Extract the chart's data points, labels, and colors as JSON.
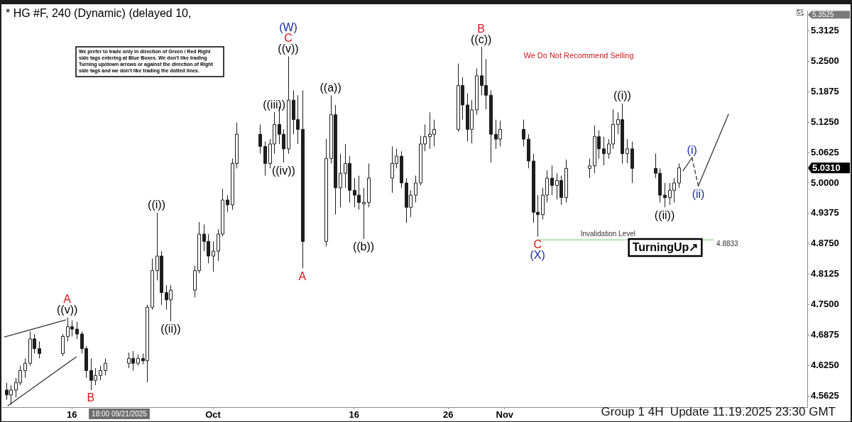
{
  "chart_data": {
    "type": "candlestick",
    "title": "* HG #F, 240 (Dynamic) (delayed 10,",
    "color": "#1e1e1e",
    "x": [
      "2025-09-09T00:00",
      "2025-09-09T12:00",
      "2025-09-10T00:00",
      "2025-09-10T12:00",
      "2025-09-11T00:00",
      "2025-09-11T12:00",
      "2025-09-12T00:00",
      "2025-09-12T12:00",
      "2025-09-15T00:00",
      "2025-09-15T12:00",
      "2025-09-16T00:00",
      "2025-09-16T12:00",
      "2025-09-17T00:00",
      "2025-09-17T12:00",
      "2025-09-18T00:00",
      "2025-09-18T12:00",
      "2025-09-19T00:00",
      "2025-09-19T12:00",
      "2025-09-22T00:00",
      "2025-09-22T12:00",
      "2025-09-23T00:00",
      "2025-09-23T12:00",
      "2025-09-24T00:00",
      "2025-09-24T12:00",
      "2025-09-25T00:00",
      "2025-09-25T12:00",
      "2025-09-26T00:00",
      "2025-09-26T12:00",
      "2025-09-29T00:00",
      "2025-09-29T12:00",
      "2025-09-30T00:00",
      "2025-09-30T12:00",
      "2025-10-01T00:00",
      "2025-10-01T12:00",
      "2025-10-02T00:00",
      "2025-10-02T12:00",
      "2025-10-03T00:00",
      "2025-10-03T12:00",
      "2025-10-06T00:00",
      "2025-10-06T12:00",
      "2025-10-07T00:00",
      "2025-10-07T12:00",
      "2025-10-08T00:00",
      "2025-10-08T12:00",
      "2025-10-09T00:00",
      "2025-10-09T12:00",
      "2025-10-10T00:00",
      "2025-10-10T12:00",
      "2025-10-13T00:00",
      "2025-10-13T12:00",
      "2025-10-14T00:00",
      "2025-10-14T12:00",
      "2025-10-15T00:00",
      "2025-10-15T12:00",
      "2025-10-16T00:00",
      "2025-10-16T12:00",
      "2025-10-17T00:00",
      "2025-10-17T12:00",
      "2025-10-20T00:00",
      "2025-10-20T12:00",
      "2025-10-21T00:00",
      "2025-10-21T12:00",
      "2025-10-22T00:00",
      "2025-10-22T12:00",
      "2025-10-23T00:00",
      "2025-10-23T12:00",
      "2025-10-24T00:00",
      "2025-10-24T12:00",
      "2025-10-27T00:00",
      "2025-10-27T12:00",
      "2025-10-28T00:00",
      "2025-10-28T12:00",
      "2025-10-29T00:00",
      "2025-10-29T12:00",
      "2025-10-30T00:00",
      "2025-10-30T12:00",
      "2025-10-31T00:00",
      "2025-10-31T12:00",
      "2025-11-03T00:00",
      "2025-11-03T12:00",
      "2025-11-04T00:00",
      "2025-11-04T12:00",
      "2025-11-05T00:00",
      "2025-11-05T12:00",
      "2025-11-06T00:00",
      "2025-11-06T12:00",
      "2025-11-07T00:00",
      "2025-11-07T12:00",
      "2025-11-10T00:00",
      "2025-11-10T12:00",
      "2025-11-11T00:00",
      "2025-11-11T12:00",
      "2025-11-12T00:00",
      "2025-11-12T12:00",
      "2025-11-13T00:00",
      "2025-11-13T12:00",
      "2025-11-14T00:00",
      "2025-11-14T12:00",
      "2025-11-17T00:00",
      "2025-11-17T12:00",
      "2025-11-18T00:00",
      "2025-11-18T12:00",
      "2025-11-19T00:00",
      "2025-11-19T12:00"
    ],
    "ohlc": [
      [
        4.575,
        4.59,
        4.555,
        4.565
      ],
      [
        4.565,
        4.585,
        4.545,
        4.575
      ],
      [
        4.575,
        4.6,
        4.56,
        4.59
      ],
      [
        4.59,
        4.625,
        4.585,
        4.615
      ],
      [
        4.615,
        4.64,
        4.6,
        4.63
      ],
      [
        4.63,
        4.695,
        4.625,
        4.68
      ],
      [
        4.68,
        4.69,
        4.65,
        4.66
      ],
      [
        4.66,
        4.675,
        4.64,
        4.65
      ],
      [
        4.65,
        4.69,
        4.645,
        4.685
      ],
      [
        4.685,
        4.724,
        4.675,
        4.705
      ],
      [
        4.705,
        4.718,
        4.685,
        4.7
      ],
      [
        4.7,
        4.715,
        4.68,
        4.69
      ],
      [
        4.69,
        4.695,
        4.65,
        4.66
      ],
      [
        4.66,
        4.665,
        4.6,
        4.615
      ],
      [
        4.615,
        4.64,
        4.575,
        4.595
      ],
      [
        4.595,
        4.62,
        4.585,
        4.605
      ],
      [
        4.605,
        4.625,
        4.595,
        4.615
      ],
      [
        4.615,
        4.64,
        4.605,
        4.63
      ],
      [
        4.63,
        4.652,
        4.62,
        4.64
      ],
      [
        4.64,
        4.655,
        4.615,
        4.63
      ],
      [
        4.63,
        4.648,
        4.625,
        4.64
      ],
      [
        4.64,
        4.65,
        4.628,
        4.635
      ],
      [
        4.635,
        4.75,
        4.591,
        4.745
      ],
      [
        4.745,
        4.845,
        4.74,
        4.82
      ],
      [
        4.82,
        4.939,
        4.8,
        4.85
      ],
      [
        4.85,
        4.86,
        4.75,
        4.775
      ],
      [
        4.775,
        4.79,
        4.74,
        4.76
      ],
      [
        4.76,
        4.79,
        4.716,
        4.78
      ],
      [
        4.78,
        4.83,
        4.765,
        4.82
      ],
      [
        4.82,
        4.92,
        4.815,
        4.895
      ],
      [
        4.895,
        4.915,
        4.86,
        4.88
      ],
      [
        4.88,
        4.895,
        4.835,
        4.85
      ],
      [
        4.85,
        4.88,
        4.818,
        4.86
      ],
      [
        4.86,
        4.905,
        4.84,
        4.895
      ],
      [
        4.895,
        4.988,
        4.89,
        4.965
      ],
      [
        4.965,
        4.975,
        4.94,
        4.955
      ],
      [
        4.955,
        5.05,
        4.945,
        5.04
      ],
      [
        5.04,
        5.124,
        5.03,
        5.1
      ],
      [
        5.1,
        5.12,
        5.06,
        5.075
      ],
      [
        5.075,
        5.085,
        5.015,
        5.04
      ],
      [
        5.04,
        5.09,
        5.03,
        5.08
      ],
      [
        5.08,
        5.145,
        5.06,
        5.12
      ],
      [
        5.12,
        5.157,
        5.08,
        5.1
      ],
      [
        5.1,
        5.11,
        5.042,
        5.07
      ],
      [
        5.07,
        5.26,
        5.06,
        5.17
      ],
      [
        5.17,
        5.19,
        5.1,
        5.13
      ],
      [
        5.13,
        5.18,
        5.08,
        5.11
      ],
      [
        5.11,
        5.19,
        4.825,
        4.88
      ],
      [
        4.88,
        5.09,
        4.87,
        5.05
      ],
      [
        5.05,
        5.18,
        5.04,
        5.14
      ],
      [
        5.14,
        5.16,
        4.935,
        4.99
      ],
      [
        4.99,
        5.06,
        4.95,
        5.02
      ],
      [
        5.02,
        5.08,
        4.99,
        5.04
      ],
      [
        5.04,
        5.055,
        4.96,
        4.985
      ],
      [
        4.985,
        5.01,
        4.95,
        4.975
      ],
      [
        4.975,
        5.015,
        4.945,
        4.96
      ],
      [
        4.96,
        4.99,
        4.885,
        4.96
      ],
      [
        4.96,
        5.04,
        4.95,
        5.01
      ],
      [
        5.01,
        5.075,
        4.98,
        5.04
      ],
      [
        5.04,
        5.07,
        5.03,
        5.055
      ],
      [
        5.055,
        5.065,
        4.99,
        5.0
      ],
      [
        5.0,
        5.01,
        4.918,
        4.95
      ],
      [
        4.95,
        4.985,
        4.93,
        4.975
      ],
      [
        4.975,
        5.015,
        4.96,
        5.0
      ],
      [
        5.0,
        5.097,
        4.995,
        5.08
      ],
      [
        5.08,
        5.12,
        5.065,
        5.095
      ],
      [
        5.095,
        5.145,
        5.07,
        5.1
      ],
      [
        5.1,
        5.13,
        5.075,
        5.11
      ],
      [
        5.11,
        5.245,
        5.105,
        5.2
      ],
      [
        5.2,
        5.217,
        5.13,
        5.16
      ],
      [
        5.16,
        5.184,
        5.085,
        5.11
      ],
      [
        5.11,
        5.17,
        5.081,
        5.15
      ],
      [
        5.15,
        5.235,
        5.14,
        5.22
      ],
      [
        5.22,
        5.279,
        5.18,
        5.2
      ],
      [
        5.2,
        5.254,
        5.151,
        5.18
      ],
      [
        5.18,
        5.19,
        5.042,
        5.1
      ],
      [
        5.1,
        5.13,
        5.07,
        5.09
      ],
      [
        5.09,
        5.128,
        5.075,
        5.11
      ],
      [
        5.11,
        5.13,
        5.075,
        5.09
      ],
      [
        5.09,
        5.1,
        5.03,
        5.045
      ],
      [
        5.045,
        5.06,
        4.918,
        4.94
      ],
      [
        4.94,
        4.975,
        4.89,
        4.935
      ],
      [
        4.935,
        4.99,
        4.925,
        4.975
      ],
      [
        4.975,
        5.026,
        4.96,
        5.01
      ],
      [
        5.01,
        5.036,
        4.975,
        4.995
      ],
      [
        4.995,
        5.02,
        4.966,
        5.005
      ],
      [
        5.005,
        5.015,
        4.955,
        4.97
      ],
      [
        4.97,
        5.048,
        4.96,
        5.03
      ],
      [
        5.03,
        5.05,
        5.01,
        5.035
      ],
      [
        5.035,
        5.118,
        5.02,
        5.095
      ],
      [
        5.095,
        5.108,
        5.05,
        5.07
      ],
      [
        5.07,
        5.095,
        5.036,
        5.06
      ],
      [
        5.06,
        5.09,
        5.05,
        5.08
      ],
      [
        5.08,
        5.151,
        5.07,
        5.12
      ],
      [
        5.12,
        5.145,
        5.1,
        5.13
      ],
      [
        5.13,
        5.163,
        5.04,
        5.06
      ],
      [
        5.06,
        5.09,
        5.04,
        5.07
      ],
      [
        5.07,
        5.085,
        5.0,
        5.03
      ],
      [
        5.03,
        5.06,
        5.01,
        5.02
      ],
      [
        5.02,
        5.03,
        4.96,
        4.975
      ],
      [
        4.975,
        5.0,
        4.95,
        4.97
      ],
      [
        4.97,
        5.0,
        4.955,
        4.985
      ],
      [
        4.985,
        5.01,
        4.96,
        5.0
      ],
      [
        5.0,
        5.04,
        4.99,
        5.031
      ]
    ],
    "series": [
      {
        "type": "line",
        "color": "#333333",
        "x": [
          "2025-09-08T20:00",
          "2025-09-15T08:00"
        ],
        "values": [
          4.684,
          4.719
        ]
      },
      {
        "type": "line",
        "color": "#333333",
        "x": [
          "2025-09-09T05:00",
          "2025-09-16T11:00"
        ],
        "values": [
          4.543,
          4.643
        ]
      },
      {
        "type": "line",
        "color": "#333333",
        "x": [
          "2025-11-19T23:00",
          "2025-11-20T22:00"
        ],
        "values": [
          5.025,
          5.052
        ]
      },
      {
        "type": "line",
        "color": "#333333",
        "line_style": "dashed",
        "x": [
          "2025-11-20T22:00",
          "2025-11-21T14:00"
        ],
        "values": [
          5.052,
          4.994
        ]
      },
      {
        "type": "line",
        "color": "#333333",
        "x": [
          "2025-11-21T14:00",
          "2025-11-24T19:00"
        ],
        "values": [
          4.994,
          5.141
        ]
      },
      {
        "type": "line",
        "name": "Invalidation Level",
        "color": "#8ed88e",
        "x": [
          "2025-11-04T12:00",
          "2025-11-23T05:00"
        ],
        "values": [
          4.8833,
          4.8833
        ],
        "value_labels": [
          null,
          "4.8833"
        ]
      }
    ],
    "xlim": [
      "2025-09-08T14:00",
      "2025-12-03T04:00"
    ],
    "xticks": [
      {
        "value": "2025-09-16",
        "label": "16"
      },
      {
        "value": "2025-10-01",
        "label": "Oct"
      },
      {
        "value": "2025-10-16",
        "label": "16"
      },
      {
        "value": "2025-10-26",
        "label": "26"
      },
      {
        "value": "2025-11-01",
        "label": "Nov"
      }
    ],
    "ylim": [
      4.54,
      5.3525
    ],
    "yticks": [
      4.5625,
      {
        "value": 4.625,
        "label": "4.6250"
      },
      4.6875,
      {
        "value": 4.75,
        "label": "4.7500"
      },
      4.8125,
      {
        "value": 4.875,
        "label": "4.8750"
      },
      4.9375,
      {
        "value": 5,
        "label": "5.0000"
      },
      5.0625,
      {
        "value": 5.125,
        "label": "5.1250"
      },
      5.1875,
      {
        "value": 5.25,
        "label": "5.2500"
      },
      5.3125
    ],
    "annotations": [
      {
        "text": "((v))",
        "x": "2025-09-15T12:00",
        "y": 4.724
      },
      {
        "text": "A",
        "x": "2025-09-15T12:00",
        "y": 4.724
      },
      {
        "text": "B",
        "x": "2025-09-18T00:00",
        "y": 4.575
      },
      {
        "text": "((i))",
        "x": "2025-09-25T00:00",
        "y": 4.939
      },
      {
        "text": "((ii))",
        "x": "2025-09-26T12:00",
        "y": 4.716
      },
      {
        "text": "((iii))",
        "x": "2025-10-07T12:00",
        "y": 5.145
      },
      {
        "text": "((iv))",
        "x": "2025-10-08T12:00",
        "y": 5.042
      },
      {
        "text": "((v))",
        "x": "2025-10-09T00:00",
        "y": 5.26
      },
      {
        "text": "C",
        "x": "2025-10-09T00:00",
        "y": 5.26
      },
      {
        "text": "(W)",
        "x": "2025-10-09T00:00",
        "y": 5.26
      },
      {
        "text": "((a))",
        "x": "2025-10-13T12:00",
        "y": 5.18
      },
      {
        "text": "A",
        "x": "2025-10-10T12:00",
        "y": 4.825
      },
      {
        "text": "((b))",
        "x": "2025-10-17T00:00",
        "y": 4.885
      },
      {
        "text": "((c))",
        "x": "2025-10-29T12:00",
        "y": 5.279
      },
      {
        "text": "B",
        "x": "2025-10-29T12:00",
        "y": 5.279
      },
      {
        "text": "C",
        "x": "2025-11-04T12:00",
        "y": 4.89
      },
      {
        "text": "(X)",
        "x": "2025-11-04T12:00",
        "y": 4.89
      },
      {
        "text": "((i))",
        "x": "2025-11-13T12:00",
        "y": 5.163
      },
      {
        "text": "((ii))",
        "x": "2025-11-18T00:00",
        "y": 4.95
      },
      {
        "text": "(i)",
        "x": "2025-11-20T22:00",
        "y": 5.052
      },
      {
        "text": "(ii)",
        "x": "2025-11-21T14:00",
        "y": 4.994
      },
      "We Do Not Recommend Selling",
      "We prefer to trade only in direction of Green / Red Right side tags entering at Blue Boxes. We don't like trading Turning up/down arrows or against the direction of Right side tags and we don't like trading the dotted lines.",
      "TurningUp↗",
      "Group 1 4H  Update 11.19.2025 23:30 GMT",
      "5.0310",
      "5.3525",
      "18:00 09/21/2025"
    ]
  }
}
